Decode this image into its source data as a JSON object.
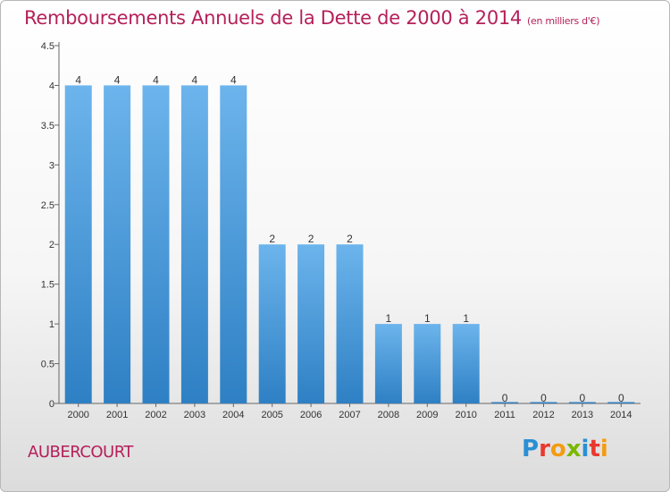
{
  "title": {
    "main": "Remboursements Annuels de la Dette de 2000 à 2014",
    "unit": "(en milliers d'€)"
  },
  "commune": "AUBERCOURT",
  "logo": {
    "text": "Proxiti",
    "colors": [
      "#2a8fd4",
      "#e8392f",
      "#f39c12",
      "#7ab800",
      "#2a8fd4",
      "#e8392f",
      "#f39c12"
    ]
  },
  "colors": {
    "bar_light": "#6cb4ec",
    "bar_dark": "#2e80c4",
    "title": "#b5205a"
  },
  "chart_data": {
    "type": "bar",
    "categories": [
      "2000",
      "2001",
      "2002",
      "2003",
      "2004",
      "2005",
      "2006",
      "2007",
      "2008",
      "2009",
      "2010",
      "2011",
      "2012",
      "2013",
      "2014"
    ],
    "values": [
      4,
      4,
      4,
      4,
      4,
      2,
      2,
      2,
      1,
      1,
      1,
      0,
      0,
      0,
      0
    ],
    "data_labels": [
      "4",
      "4",
      "4",
      "4",
      "4",
      "2",
      "2",
      "2",
      "1",
      "1",
      "1",
      "0",
      "0",
      "0",
      "0"
    ],
    "ylim": [
      0,
      4.5
    ],
    "yticks": [
      0,
      0.5,
      1,
      1.5,
      2,
      2.5,
      3,
      3.5,
      4,
      4.5
    ],
    "ytick_labels": [
      "0",
      "0.5",
      "1",
      "1.5",
      "2",
      "2.5",
      "3",
      "3.5",
      "4",
      "4.5"
    ],
    "grid": false,
    "title": "Remboursements Annuels de la Dette de 2000 à 2014",
    "xlabel": "",
    "ylabel": ""
  }
}
